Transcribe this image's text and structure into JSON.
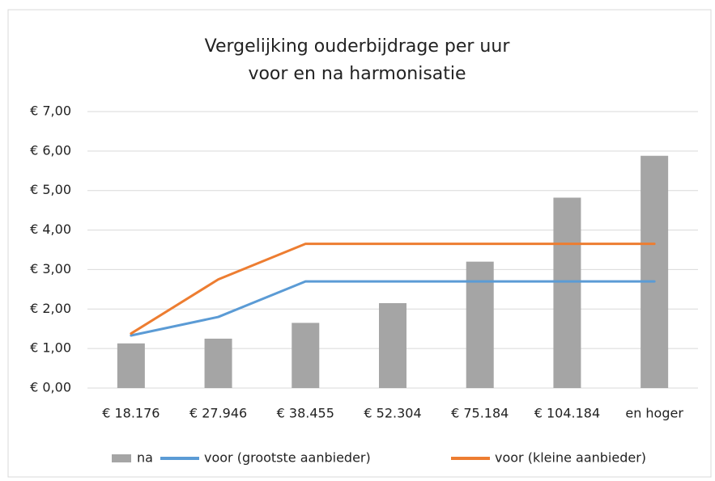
{
  "chart_data": {
    "type": "bar",
    "title": [
      "Vergelijking ouderbijdrage per uur",
      "voor en na harmonisatie"
    ],
    "categories": [
      "€ 18.176",
      "€ 27.946",
      "€ 38.455",
      "€ 52.304",
      "€ 75.184",
      "€ 104.184",
      "en hoger"
    ],
    "series": [
      {
        "name": "na",
        "type": "bar",
        "color": "#a5a5a5",
        "values": [
          1.13,
          1.25,
          1.65,
          2.15,
          3.2,
          4.82,
          5.88
        ]
      },
      {
        "name": "voor (grootste aanbieder)",
        "type": "line",
        "color": "#5b9bd5",
        "values": [
          1.33,
          1.8,
          2.7,
          2.7,
          2.7,
          2.7,
          2.7
        ]
      },
      {
        "name": "voor (kleine aanbieder)",
        "type": "line",
        "color": "#ed7d31",
        "values": [
          1.38,
          2.75,
          3.65,
          3.65,
          3.65,
          3.65,
          3.65
        ]
      }
    ],
    "ylim": [
      0,
      7
    ],
    "yticks": [
      {
        "value": 0,
        "label": "€ 0,00"
      },
      {
        "value": 1,
        "label": "€ 1,00"
      },
      {
        "value": 2,
        "label": "€ 2,00"
      },
      {
        "value": 3,
        "label": "€ 3,00"
      },
      {
        "value": 4,
        "label": "€ 4,00"
      },
      {
        "value": 5,
        "label": "€ 5,00"
      },
      {
        "value": 6,
        "label": "€ 6,00"
      },
      {
        "value": 7,
        "label": "€ 7,00"
      }
    ],
    "grid": true,
    "legend": "bottom"
  }
}
